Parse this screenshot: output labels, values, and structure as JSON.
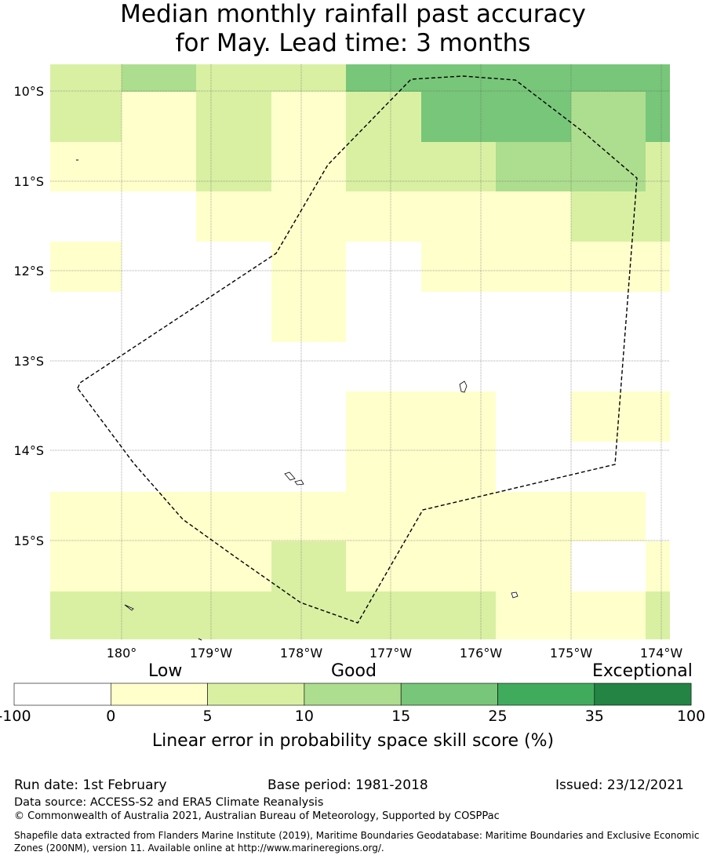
{
  "title": {
    "line1": "Median monthly rainfall past accuracy",
    "line2": "for May. Lead time: 3 months"
  },
  "map": {
    "lat_labels": [
      "10°S",
      "11°S",
      "12°S",
      "13°S",
      "14°S",
      "15°S"
    ],
    "lon_labels": [
      "180°",
      "179°W",
      "178°W",
      "177°W",
      "176°W",
      "175°W",
      "174°W"
    ],
    "eez_boundary": "dashed black line (Tuvalu/Wallis & Futuna EEZ)",
    "grid_classes": {
      "comment": "rows top->bottom, columns left->right; class index into colorbar.colors (0=white,1=0-5,2=5-10,3=10-15,4=15-25)",
      "rows": [
        [
          2,
          3,
          2,
          2,
          4,
          4,
          4,
          4,
          4
        ],
        [
          2,
          1,
          2,
          1,
          2,
          4,
          4,
          3,
          4
        ],
        [
          1,
          1,
          2,
          1,
          2,
          2,
          3,
          3,
          2
        ],
        [
          0,
          0,
          1,
          1,
          1,
          1,
          1,
          2,
          2
        ],
        [
          1,
          0,
          0,
          1,
          0,
          1,
          1,
          1,
          1
        ],
        [
          0,
          0,
          0,
          1,
          0,
          0,
          0,
          0,
          0
        ],
        [
          0,
          0,
          0,
          0,
          0,
          0,
          0,
          0,
          0
        ],
        [
          0,
          0,
          0,
          0,
          1,
          1,
          0,
          1,
          1
        ],
        [
          0,
          0,
          0,
          0,
          1,
          1,
          0,
          0,
          0
        ],
        [
          1,
          1,
          1,
          1,
          1,
          1,
          1,
          1,
          0
        ],
        [
          1,
          1,
          1,
          2,
          1,
          1,
          1,
          0,
          1
        ],
        [
          2,
          2,
          2,
          2,
          2,
          2,
          1,
          1,
          2
        ]
      ]
    }
  },
  "colorbar": {
    "categories": [
      "Low",
      "Good",
      "Exceptional"
    ],
    "ticks": [
      "-100",
      "0",
      "5",
      "10",
      "15",
      "25",
      "35",
      "100"
    ],
    "colors": [
      "#ffffff",
      "#ffffcc",
      "#d9f0a3",
      "#addd8e",
      "#78c679",
      "#41ab5d",
      "#238443"
    ],
    "title": "Linear error in probability space skill score (%)"
  },
  "footer": {
    "run_date": "Run date: 1st February",
    "base_period": "Base period: 1981-2018",
    "issued": "Issued: 23/12/2021",
    "data_source": "Data source: ACCESS-S2 and ERA5 Climate Reanalysis",
    "copyright": "© Commonwealth of Australia 2021, Australian Bureau of Meteorology, Supported by COSPPac",
    "shapefile": "Shapefile data extracted from Flanders Marine Institute (2019), Maritime Boundaries Geodatabase: Maritime Boundaries and Exclusive Economic Zones (200NM), version 11. Available online at http://www.marineregions.org/."
  }
}
